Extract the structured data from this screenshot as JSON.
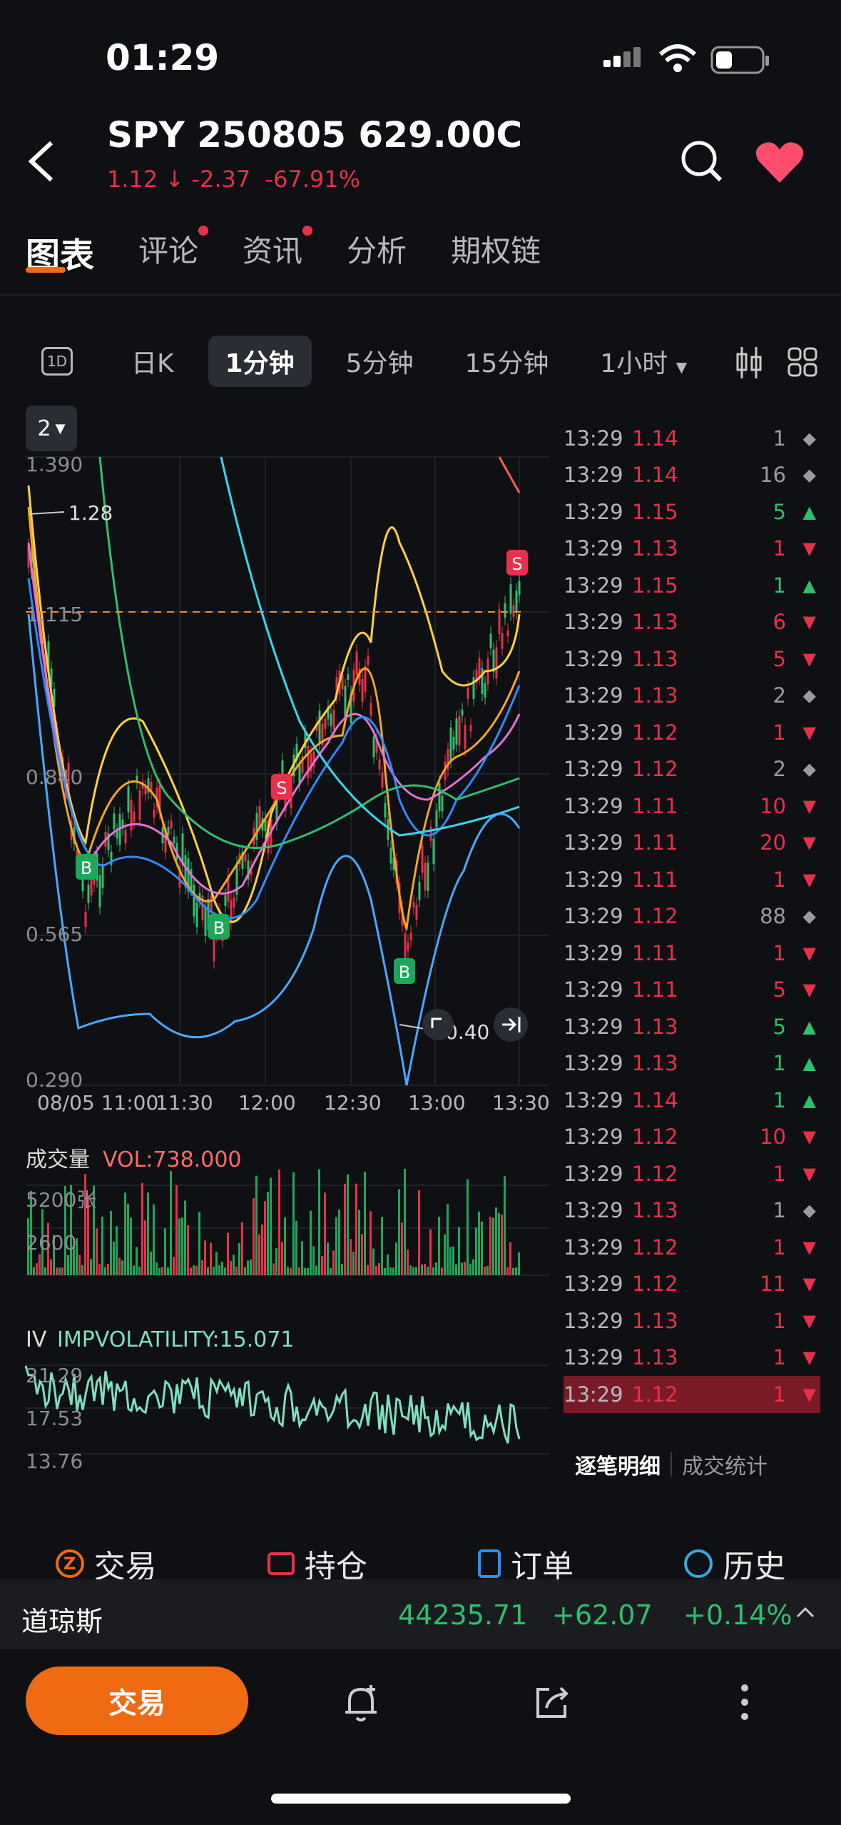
{
  "status": {
    "time": "01:29"
  },
  "header": {
    "title": "SPY 250805 629.00C",
    "price": "1.12",
    "change": "-2.37",
    "change_pct": "-67.91%"
  },
  "tabs": [
    {
      "label": "图表",
      "active": true,
      "dot": false
    },
    {
      "label": "评论",
      "active": false,
      "dot": true
    },
    {
      "label": "资讯",
      "active": false,
      "dot": true
    },
    {
      "label": "分析",
      "active": false,
      "dot": false
    },
    {
      "label": "期权链",
      "active": false,
      "dot": false
    }
  ],
  "periods": {
    "icon_1d": "1D",
    "items": [
      "日K",
      "1分钟",
      "5分钟",
      "15分钟",
      "1小时"
    ],
    "active": "1分钟"
  },
  "chart": {
    "layer_badge": "2",
    "price_axis": [
      "1.390",
      "1.115",
      "0.840",
      "0.565",
      "0.290"
    ],
    "high_marker": "1.28",
    "low_marker": "0.40",
    "time_axis": [
      "08/05 11:00",
      "11:30",
      "12:00",
      "12:30",
      "13:00",
      "13:30"
    ],
    "markers": [
      "B",
      "B",
      "B",
      "S",
      "S"
    ]
  },
  "volume": {
    "title": "成交量",
    "vol_label": "VOL:738.000",
    "axis": [
      "5200张",
      "2600"
    ]
  },
  "iv": {
    "title": "IV",
    "label": "IMPVOLATILITY:15.071",
    "axis": [
      "21.29",
      "17.53",
      "13.76"
    ]
  },
  "trades": [
    {
      "time": "13:29",
      "price": "1.14",
      "qty": "1",
      "dir": "neutral"
    },
    {
      "time": "13:29",
      "price": "1.14",
      "qty": "16",
      "dir": "neutral"
    },
    {
      "time": "13:29",
      "price": "1.15",
      "qty": "5",
      "dir": "up"
    },
    {
      "time": "13:29",
      "price": "1.13",
      "qty": "1",
      "dir": "down"
    },
    {
      "time": "13:29",
      "price": "1.15",
      "qty": "1",
      "dir": "up"
    },
    {
      "time": "13:29",
      "price": "1.13",
      "qty": "6",
      "dir": "down"
    },
    {
      "time": "13:29",
      "price": "1.13",
      "qty": "5",
      "dir": "down"
    },
    {
      "time": "13:29",
      "price": "1.13",
      "qty": "2",
      "dir": "neutral"
    },
    {
      "time": "13:29",
      "price": "1.12",
      "qty": "1",
      "dir": "down"
    },
    {
      "time": "13:29",
      "price": "1.12",
      "qty": "2",
      "dir": "neutral"
    },
    {
      "time": "13:29",
      "price": "1.11",
      "qty": "10",
      "dir": "down"
    },
    {
      "time": "13:29",
      "price": "1.11",
      "qty": "20",
      "dir": "down"
    },
    {
      "time": "13:29",
      "price": "1.11",
      "qty": "1",
      "dir": "down"
    },
    {
      "time": "13:29",
      "price": "1.12",
      "qty": "88",
      "dir": "neutral"
    },
    {
      "time": "13:29",
      "price": "1.11",
      "qty": "1",
      "dir": "down"
    },
    {
      "time": "13:29",
      "price": "1.11",
      "qty": "5",
      "dir": "down"
    },
    {
      "time": "13:29",
      "price": "1.13",
      "qty": "5",
      "dir": "up"
    },
    {
      "time": "13:29",
      "price": "1.13",
      "qty": "1",
      "dir": "up"
    },
    {
      "time": "13:29",
      "price": "1.14",
      "qty": "1",
      "dir": "up"
    },
    {
      "time": "13:29",
      "price": "1.12",
      "qty": "10",
      "dir": "down"
    },
    {
      "time": "13:29",
      "price": "1.12",
      "qty": "1",
      "dir": "down"
    },
    {
      "time": "13:29",
      "price": "1.13",
      "qty": "1",
      "dir": "neutral"
    },
    {
      "time": "13:29",
      "price": "1.12",
      "qty": "1",
      "dir": "down"
    },
    {
      "time": "13:29",
      "price": "1.12",
      "qty": "11",
      "dir": "down"
    },
    {
      "time": "13:29",
      "price": "1.13",
      "qty": "1",
      "dir": "down"
    },
    {
      "time": "13:29",
      "price": "1.13",
      "qty": "1",
      "dir": "down"
    },
    {
      "time": "13:29",
      "price": "1.12",
      "qty": "1",
      "dir": "down",
      "highlight": true
    }
  ],
  "trade_tabs": [
    "逐笔明细",
    "成交统计"
  ],
  "bottom_nav": [
    "交易",
    "持仓",
    "订单",
    "历史"
  ],
  "ticker": {
    "name": "道琼斯",
    "value": "44235.71",
    "change": "+62.07",
    "pct": "+0.14%"
  },
  "footer": {
    "trade_button": "交易"
  },
  "colors": {
    "up": "#2fbf6e",
    "down": "#e8304a",
    "accent": "#f06a12",
    "iv_line": "#7fe0c0"
  }
}
